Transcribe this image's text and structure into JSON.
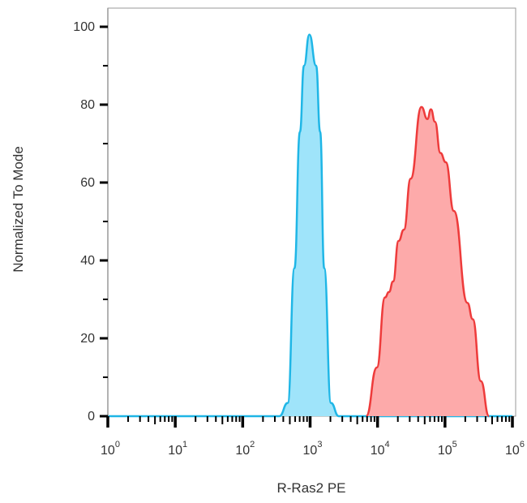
{
  "chart_data": {
    "type": "area",
    "title": "",
    "xlabel": "R-Ras2 PE",
    "ylabel": "Normalized To Mode",
    "xscale": "log",
    "xlim": [
      1,
      1000000
    ],
    "ylim": [
      0,
      100
    ],
    "grid": false,
    "x_ticks": [
      {
        "base": "10",
        "exp": "0",
        "value": 1
      },
      {
        "base": "10",
        "exp": "1",
        "value": 10
      },
      {
        "base": "10",
        "exp": "2",
        "value": 100
      },
      {
        "base": "10",
        "exp": "3",
        "value": 1000
      },
      {
        "base": "10",
        "exp": "4",
        "value": 10000
      },
      {
        "base": "10",
        "exp": "5",
        "value": 100000
      },
      {
        "base": "10",
        "exp": "6",
        "value": 1000000
      }
    ],
    "y_ticks": [
      "0",
      "20",
      "40",
      "60",
      "80",
      "100"
    ],
    "series": [
      {
        "color": "#1fb6e6",
        "fill": "#9fe4fa",
        "x": [
          1,
          350,
          466,
          586,
          706,
          811,
          975,
          1227,
          1409,
          1618,
          2037,
          2660,
          1000000
        ],
        "y": [
          0,
          0,
          3.4,
          38,
          73,
          90,
          98,
          90,
          73,
          38,
          3.4,
          0,
          0
        ]
      },
      {
        "color": "#ee3b3b",
        "fill": "#fdaaaa",
        "x": [
          6780,
          9770,
          12900,
          14800,
          17000,
          20500,
          24600,
          31000,
          44800,
          54800,
          61900,
          71100,
          85500,
          102800,
          135500,
          215300,
          258200,
          340400,
          449800
        ],
        "y": [
          0,
          12.5,
          30.5,
          31.9,
          34.6,
          45,
          47.9,
          61,
          79.4,
          76.3,
          78.8,
          75.6,
          67.6,
          65.2,
          52.7,
          29.1,
          24.9,
          9,
          0
        ]
      }
    ]
  }
}
